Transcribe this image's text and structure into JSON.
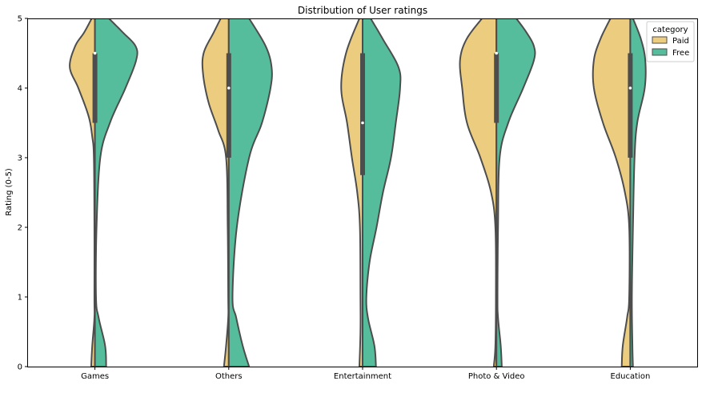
{
  "chart_data": {
    "type": "violin",
    "title": "Distribution of User ratings",
    "xlabel": "",
    "ylabel": "Rating (0-5)",
    "ylim": [
      0,
      5
    ],
    "yticks": [
      0,
      1,
      2,
      3,
      4,
      5
    ],
    "categories": [
      "Games",
      "Others",
      "Entertainment",
      "Photo & Video",
      "Education"
    ],
    "split": true,
    "legend": {
      "title": "category",
      "placement": "top-right",
      "entries": [
        "Paid",
        "Free"
      ]
    },
    "series": [
      {
        "name": "Paid",
        "color": "#eccd7f",
        "side": "left",
        "profiles": [
          [
            [
              0,
              0.07
            ],
            [
              0.3,
              0.05
            ],
            [
              0.7,
              0.01
            ],
            [
              1,
              0.01
            ],
            [
              2,
              0.01
            ],
            [
              3,
              0.02
            ],
            [
              3.3,
              0.05
            ],
            [
              3.6,
              0.12
            ],
            [
              4,
              0.31
            ],
            [
              4.3,
              0.47
            ],
            [
              4.6,
              0.37
            ],
            [
              4.8,
              0.2
            ],
            [
              5,
              0.06
            ]
          ],
          [
            [
              0,
              0.09
            ],
            [
              0.3,
              0.05
            ],
            [
              0.7,
              0.01
            ],
            [
              1,
              0.01
            ],
            [
              2,
              0.02
            ],
            [
              3,
              0.05
            ],
            [
              3.4,
              0.2
            ],
            [
              3.8,
              0.38
            ],
            [
              4.2,
              0.48
            ],
            [
              4.5,
              0.47
            ],
            [
              4.8,
              0.28
            ],
            [
              5,
              0.15
            ]
          ],
          [
            [
              0,
              0.06
            ],
            [
              0.5,
              0.04
            ],
            [
              1,
              0.04
            ],
            [
              2,
              0.05
            ],
            [
              2.5,
              0.1
            ],
            [
              3,
              0.2
            ],
            [
              3.5,
              0.29
            ],
            [
              4,
              0.4
            ],
            [
              4.5,
              0.31
            ],
            [
              5,
              0.06
            ]
          ],
          [
            [
              0,
              0.05
            ],
            [
              0.3,
              0.02
            ],
            [
              1,
              0.01
            ],
            [
              2,
              0.02
            ],
            [
              2.5,
              0.1
            ],
            [
              3,
              0.3
            ],
            [
              3.5,
              0.55
            ],
            [
              4,
              0.64
            ],
            [
              4.4,
              0.68
            ],
            [
              4.7,
              0.56
            ],
            [
              5,
              0.27
            ]
          ],
          [
            [
              0,
              0.16
            ],
            [
              0.3,
              0.14
            ],
            [
              0.7,
              0.06
            ],
            [
              1,
              0.02
            ],
            [
              2,
              0.02
            ],
            [
              2.5,
              0.1
            ],
            [
              3,
              0.27
            ],
            [
              3.5,
              0.51
            ],
            [
              4,
              0.68
            ],
            [
              4.4,
              0.68
            ],
            [
              4.7,
              0.56
            ],
            [
              5,
              0.37
            ]
          ]
        ]
      },
      {
        "name": "Free",
        "color": "#56bd9c",
        "side": "right",
        "profiles": [
          [
            [
              0,
              0.21
            ],
            [
              0.3,
              0.19
            ],
            [
              0.7,
              0.07
            ],
            [
              1,
              0.02
            ],
            [
              2,
              0.03
            ],
            [
              3,
              0.1
            ],
            [
              3.5,
              0.28
            ],
            [
              4,
              0.57
            ],
            [
              4.4,
              0.77
            ],
            [
              4.6,
              0.76
            ],
            [
              4.8,
              0.52
            ],
            [
              5,
              0.26
            ]
          ],
          [
            [
              0,
              0.38
            ],
            [
              0.3,
              0.26
            ],
            [
              0.7,
              0.14
            ],
            [
              1,
              0.07
            ],
            [
              2,
              0.15
            ],
            [
              3,
              0.38
            ],
            [
              3.5,
              0.62
            ],
            [
              4,
              0.78
            ],
            [
              4.3,
              0.8
            ],
            [
              4.6,
              0.69
            ],
            [
              5,
              0.38
            ]
          ],
          [
            [
              0,
              0.25
            ],
            [
              0.3,
              0.22
            ],
            [
              0.7,
              0.1
            ],
            [
              1,
              0.07
            ],
            [
              1.5,
              0.13
            ],
            [
              2,
              0.26
            ],
            [
              2.5,
              0.38
            ],
            [
              3,
              0.53
            ],
            [
              3.5,
              0.62
            ],
            [
              4,
              0.7
            ],
            [
              4.3,
              0.67
            ],
            [
              4.7,
              0.38
            ],
            [
              5,
              0.15
            ]
          ],
          [
            [
              0,
              0.1
            ],
            [
              0.3,
              0.08
            ],
            [
              0.7,
              0.03
            ],
            [
              1,
              0.02
            ],
            [
              2,
              0.03
            ],
            [
              3,
              0.06
            ],
            [
              3.5,
              0.22
            ],
            [
              4,
              0.5
            ],
            [
              4.4,
              0.7
            ],
            [
              4.6,
              0.7
            ],
            [
              4.8,
              0.56
            ],
            [
              5,
              0.37
            ]
          ],
          [
            [
              0,
              0.05
            ],
            [
              0.3,
              0.04
            ],
            [
              1,
              0.03
            ],
            [
              2,
              0.05
            ],
            [
              3,
              0.08
            ],
            [
              3.5,
              0.13
            ],
            [
              4,
              0.27
            ],
            [
              4.4,
              0.28
            ],
            [
              4.7,
              0.2
            ],
            [
              5,
              0.05
            ]
          ]
        ]
      }
    ],
    "box": [
      {
        "q1": 3.5,
        "median": 4.5,
        "q3": 4.5
      },
      {
        "q1": 3.0,
        "median": 4.0,
        "q3": 4.5
      },
      {
        "q1": 2.75,
        "median": 3.5,
        "q3": 4.5
      },
      {
        "q1": 3.5,
        "median": 4.5,
        "q3": 4.5
      },
      {
        "q1": 3.0,
        "median": 4.0,
        "q3": 4.5
      }
    ]
  }
}
